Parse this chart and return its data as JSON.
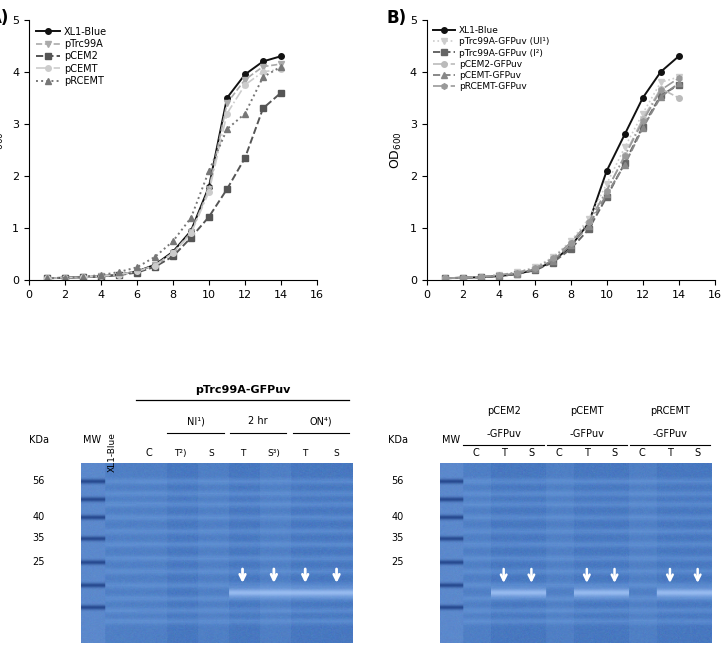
{
  "xlim": [
    0,
    16
  ],
  "ylim": [
    0,
    5
  ],
  "xticks": [
    0,
    2,
    4,
    6,
    8,
    10,
    12,
    14,
    16
  ],
  "yticks": [
    0,
    1,
    2,
    3,
    4,
    5
  ],
  "panelA": {
    "series": [
      {
        "label": "XL1-Blue",
        "color": "#111111",
        "linestyle": "-",
        "marker": "o",
        "markersize": 4,
        "linewidth": 1.4,
        "markerfacecolor": "#111111",
        "x": [
          1,
          2,
          3,
          4,
          5,
          6,
          7,
          8,
          9,
          10,
          11,
          12,
          13,
          14
        ],
        "y": [
          0.04,
          0.05,
          0.06,
          0.08,
          0.11,
          0.17,
          0.3,
          0.55,
          0.95,
          1.8,
          3.5,
          3.95,
          4.2,
          4.3
        ]
      },
      {
        "label": "pTrc99A",
        "color": "#aaaaaa",
        "linestyle": "--",
        "marker": "v",
        "markersize": 4,
        "linewidth": 1.2,
        "markerfacecolor": "#aaaaaa",
        "x": [
          1,
          2,
          3,
          4,
          5,
          6,
          7,
          8,
          9,
          10,
          11,
          12,
          13,
          14
        ],
        "y": [
          0.04,
          0.05,
          0.06,
          0.08,
          0.11,
          0.17,
          0.29,
          0.53,
          0.92,
          1.75,
          3.4,
          3.85,
          4.1,
          4.15
        ]
      },
      {
        "label": "pCEM2",
        "color": "#555555",
        "linestyle": "--",
        "marker": "s",
        "markersize": 4,
        "linewidth": 1.4,
        "markerfacecolor": "#555555",
        "x": [
          1,
          2,
          3,
          4,
          5,
          6,
          7,
          8,
          9,
          10,
          11,
          12,
          13,
          14
        ],
        "y": [
          0.04,
          0.05,
          0.06,
          0.07,
          0.1,
          0.15,
          0.26,
          0.46,
          0.82,
          1.22,
          1.75,
          2.35,
          3.3,
          3.6
        ]
      },
      {
        "label": "pCEMT",
        "color": "#cccccc",
        "linestyle": "-.",
        "marker": "o",
        "markersize": 4,
        "linewidth": 1.2,
        "markerfacecolor": "#cccccc",
        "x": [
          1,
          2,
          3,
          4,
          5,
          6,
          7,
          8,
          9,
          10,
          11,
          12,
          13,
          14
        ],
        "y": [
          0.04,
          0.05,
          0.06,
          0.08,
          0.11,
          0.17,
          0.28,
          0.52,
          0.9,
          1.7,
          3.2,
          3.75,
          4.0,
          4.05
        ]
      },
      {
        "label": "pRCEMT",
        "color": "#777777",
        "linestyle": ":",
        "marker": "^",
        "markersize": 4,
        "linewidth": 1.4,
        "markerfacecolor": "#777777",
        "x": [
          1,
          2,
          3,
          4,
          5,
          6,
          7,
          8,
          9,
          10,
          11,
          12,
          13,
          14
        ],
        "y": [
          0.04,
          0.05,
          0.07,
          0.1,
          0.16,
          0.25,
          0.45,
          0.75,
          1.2,
          2.1,
          2.9,
          3.2,
          3.9,
          4.1
        ]
      }
    ]
  },
  "panelB": {
    "series": [
      {
        "label": "XL1-Blue",
        "color": "#111111",
        "linestyle": "-",
        "marker": "o",
        "markersize": 4,
        "linewidth": 1.4,
        "markerfacecolor": "#111111",
        "x": [
          1,
          2,
          3,
          4,
          5,
          6,
          7,
          8,
          9,
          10,
          11,
          12,
          13,
          14
        ],
        "y": [
          0.04,
          0.05,
          0.06,
          0.08,
          0.12,
          0.2,
          0.36,
          0.65,
          1.1,
          2.1,
          2.8,
          3.5,
          4.0,
          4.3
        ]
      },
      {
        "label": "pTrc99A-GFPuv (UI¹)",
        "color": "#cccccc",
        "linestyle": ":",
        "marker": "v",
        "markersize": 4,
        "linewidth": 1.2,
        "markerfacecolor": "#cccccc",
        "x": [
          1,
          2,
          3,
          4,
          5,
          6,
          7,
          8,
          9,
          10,
          11,
          12,
          13,
          14
        ],
        "y": [
          0.04,
          0.05,
          0.07,
          0.1,
          0.16,
          0.25,
          0.44,
          0.75,
          1.18,
          1.85,
          2.55,
          3.2,
          3.8,
          3.9
        ]
      },
      {
        "label": "pTrc99A-GFPuv (I²)",
        "color": "#666666",
        "linestyle": "--",
        "marker": "s",
        "markersize": 4,
        "linewidth": 1.4,
        "markerfacecolor": "#666666",
        "x": [
          1,
          2,
          3,
          4,
          5,
          6,
          7,
          8,
          9,
          10,
          11,
          12,
          13,
          14
        ],
        "y": [
          0.04,
          0.05,
          0.06,
          0.08,
          0.12,
          0.19,
          0.34,
          0.6,
          0.98,
          1.6,
          2.25,
          2.95,
          3.55,
          3.75
        ]
      },
      {
        "label": "pCEM2-GFPuv",
        "color": "#bbbbbb",
        "linestyle": "-.",
        "marker": "o",
        "markersize": 4,
        "linewidth": 1.2,
        "markerfacecolor": "#bbbbbb",
        "x": [
          1,
          2,
          3,
          4,
          5,
          6,
          7,
          8,
          9,
          10,
          11,
          12,
          13,
          14
        ],
        "y": [
          0.04,
          0.05,
          0.07,
          0.1,
          0.15,
          0.23,
          0.42,
          0.72,
          1.12,
          1.72,
          2.4,
          3.1,
          3.68,
          3.5
        ]
      },
      {
        "label": "pCEMT-GFPuv",
        "color": "#888888",
        "linestyle": "--",
        "marker": "^",
        "markersize": 4,
        "linewidth": 1.4,
        "markerfacecolor": "#888888",
        "x": [
          1,
          2,
          3,
          4,
          5,
          6,
          7,
          8,
          9,
          10,
          11,
          12,
          13,
          14
        ],
        "y": [
          0.04,
          0.05,
          0.06,
          0.09,
          0.13,
          0.21,
          0.38,
          0.67,
          1.05,
          1.65,
          2.22,
          2.92,
          3.52,
          3.78
        ]
      },
      {
        "label": "pRCEMT-GFPuv",
        "color": "#999999",
        "linestyle": "-.",
        "marker": "h",
        "markersize": 4,
        "linewidth": 1.2,
        "markerfacecolor": "#999999",
        "x": [
          1,
          2,
          3,
          4,
          5,
          6,
          7,
          8,
          9,
          10,
          11,
          12,
          13,
          14
        ],
        "y": [
          0.04,
          0.05,
          0.07,
          0.1,
          0.15,
          0.23,
          0.42,
          0.72,
          1.12,
          1.72,
          2.38,
          3.05,
          3.65,
          3.88
        ]
      }
    ]
  }
}
